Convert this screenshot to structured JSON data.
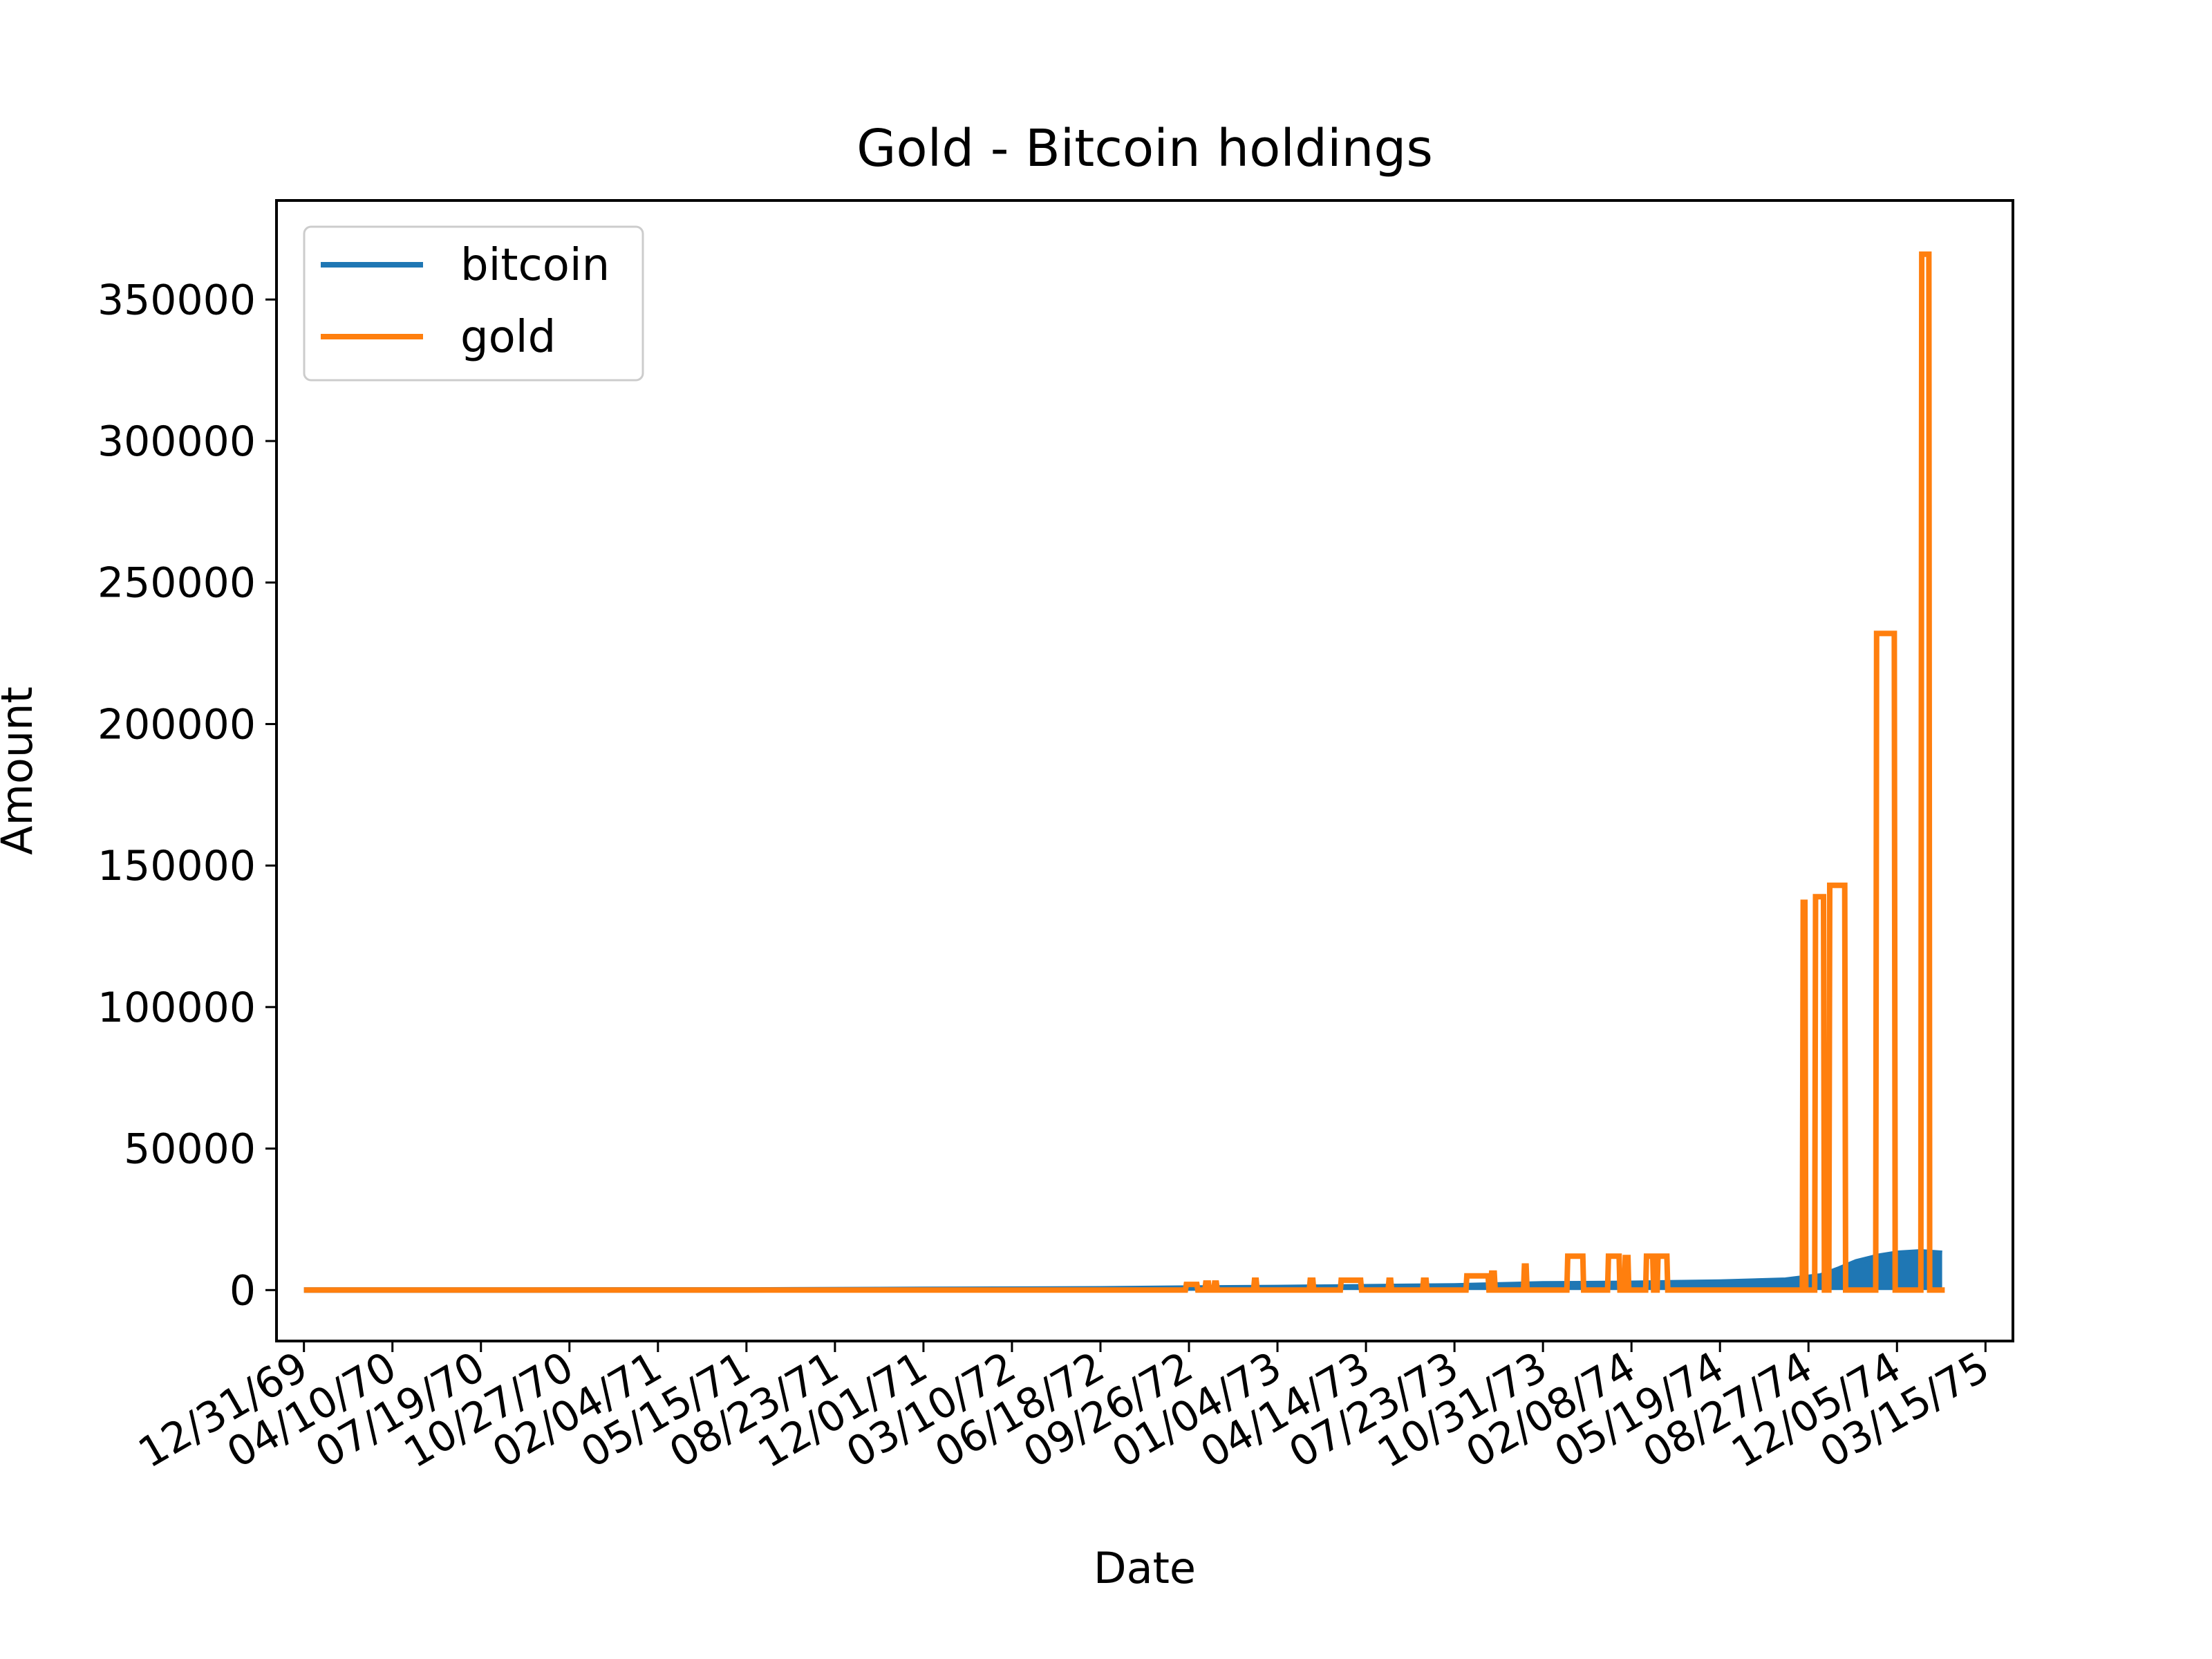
{
  "chart_data": {
    "type": "line",
    "title": "Gold - Bitcoin holdings",
    "xlabel": "Date",
    "ylabel": "Amount",
    "x_axis_type": "date",
    "xlim": [
      "1969-11-30",
      "1975-04-15"
    ],
    "ylim": [
      -18000,
      385000
    ],
    "xticks": [
      "12/31/69",
      "04/10/70",
      "07/19/70",
      "10/27/70",
      "02/04/71",
      "05/15/71",
      "08/23/71",
      "12/01/71",
      "03/10/72",
      "06/18/72",
      "09/26/72",
      "01/04/73",
      "04/14/73",
      "07/23/73",
      "10/31/73",
      "02/08/74",
      "05/19/74",
      "08/27/74",
      "12/05/74",
      "03/15/75"
    ],
    "yticks": [
      0,
      50000,
      100000,
      150000,
      200000,
      250000,
      300000,
      350000
    ],
    "grid": false,
    "legend": {
      "position": "top-left"
    },
    "colors": {
      "bitcoin": "#1f77b4",
      "gold": "#ff7f0e"
    },
    "series": [
      {
        "name": "bitcoin",
        "data": [
          [
            "1969-12-31",
            0
          ],
          [
            "1971-05-15",
            50
          ],
          [
            "1971-12-01",
            250
          ],
          [
            "1972-06-18",
            450
          ],
          [
            "1972-09-26",
            700
          ],
          [
            "1973-01-04",
            900
          ],
          [
            "1973-07-23",
            1500
          ],
          [
            "1973-10-31",
            2200
          ],
          [
            "1974-02-08",
            2400
          ],
          [
            "1974-05-19",
            2800
          ],
          [
            "1974-08-01",
            3500
          ],
          [
            "1974-08-27",
            4500
          ],
          [
            "1974-09-10",
            5000
          ],
          [
            "1974-10-01",
            7500
          ],
          [
            "1974-10-20",
            10000
          ],
          [
            "1974-11-15",
            12000
          ],
          [
            "1974-12-05",
            13000
          ],
          [
            "1975-01-01",
            13500
          ],
          [
            "1975-01-25",
            13000
          ]
        ]
      },
      {
        "name": "gold",
        "data": [
          [
            "1969-12-31",
            0
          ],
          [
            "1972-09-22",
            0
          ],
          [
            "1972-09-23",
            2000
          ],
          [
            "1972-10-05",
            2000
          ],
          [
            "1972-10-06",
            0
          ],
          [
            "1972-10-14",
            0
          ],
          [
            "1972-10-15",
            2500
          ],
          [
            "1972-10-18",
            2500
          ],
          [
            "1972-10-19",
            0
          ],
          [
            "1972-10-24",
            0
          ],
          [
            "1972-10-25",
            2500
          ],
          [
            "1972-10-27",
            2500
          ],
          [
            "1972-10-28",
            0
          ],
          [
            "1972-12-08",
            0
          ],
          [
            "1972-12-09",
            3500
          ],
          [
            "1972-12-11",
            3500
          ],
          [
            "1972-12-12",
            0
          ],
          [
            "1973-02-09",
            0
          ],
          [
            "1973-02-10",
            3500
          ],
          [
            "1973-02-13",
            3500
          ],
          [
            "1973-02-14",
            0
          ],
          [
            "1973-03-16",
            0
          ],
          [
            "1973-03-17",
            3500
          ],
          [
            "1973-04-08",
            3500
          ],
          [
            "1973-04-09",
            0
          ],
          [
            "1973-05-09",
            0
          ],
          [
            "1973-05-10",
            3500
          ],
          [
            "1973-05-12",
            3500
          ],
          [
            "1973-05-13",
            0
          ],
          [
            "1973-06-17",
            0
          ],
          [
            "1973-06-18",
            3500
          ],
          [
            "1973-06-21",
            3500
          ],
          [
            "1973-06-22",
            0
          ],
          [
            "1973-08-05",
            0
          ],
          [
            "1973-08-06",
            5000
          ],
          [
            "1973-08-30",
            5000
          ],
          [
            "1973-08-31",
            0
          ],
          [
            "1973-09-02",
            0
          ],
          [
            "1973-09-03",
            6000
          ],
          [
            "1973-09-06",
            6000
          ],
          [
            "1973-09-07",
            0
          ],
          [
            "1973-10-09",
            0
          ],
          [
            "1973-10-10",
            8500
          ],
          [
            "1973-10-12",
            8500
          ],
          [
            "1973-10-13",
            0
          ],
          [
            "1973-11-27",
            0
          ],
          [
            "1973-11-28",
            12000
          ],
          [
            "1973-12-15",
            12000
          ],
          [
            "1973-12-16",
            0
          ],
          [
            "1974-01-12",
            0
          ],
          [
            "1974-01-13",
            12000
          ],
          [
            "1974-01-25",
            12000
          ],
          [
            "1974-01-26",
            0
          ],
          [
            "1974-01-31",
            0
          ],
          [
            "1974-02-01",
            11500
          ],
          [
            "1974-02-04",
            11500
          ],
          [
            "1974-02-05",
            0
          ],
          [
            "1974-02-24",
            0
          ],
          [
            "1974-02-25",
            12000
          ],
          [
            "1974-03-04",
            12000
          ],
          [
            "1974-03-05",
            0
          ],
          [
            "1974-03-09",
            0
          ],
          [
            "1974-03-10",
            12000
          ],
          [
            "1974-03-20",
            12000
          ],
          [
            "1974-03-21",
            0
          ],
          [
            "1974-08-20",
            0
          ],
          [
            "1974-08-21",
            137000
          ],
          [
            "1974-08-23",
            137000
          ],
          [
            "1974-08-24",
            0
          ],
          [
            "1974-09-03",
            0
          ],
          [
            "1974-09-04",
            139000
          ],
          [
            "1974-09-13",
            139000
          ],
          [
            "1974-09-14",
            0
          ],
          [
            "1974-09-19",
            0
          ],
          [
            "1974-09-20",
            143000
          ],
          [
            "1974-10-07",
            143000
          ],
          [
            "1974-10-08",
            0
          ],
          [
            "1974-11-11",
            0
          ],
          [
            "1974-11-12",
            232000
          ],
          [
            "1974-12-02",
            232000
          ],
          [
            "1974-12-03",
            0
          ],
          [
            "1975-01-01",
            0
          ],
          [
            "1975-01-02",
            366000
          ],
          [
            "1975-01-10",
            366000
          ],
          [
            "1975-01-11",
            0
          ],
          [
            "1975-01-28",
            0
          ]
        ]
      }
    ]
  }
}
